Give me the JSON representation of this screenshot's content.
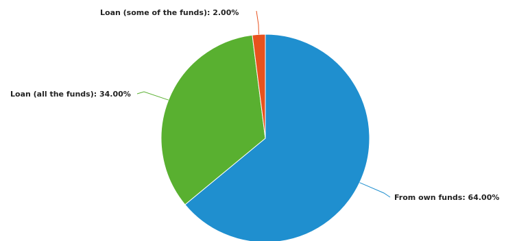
{
  "chart_data": {
    "type": "pie",
    "title": "",
    "series": [
      {
        "name": "",
        "slices": [
          {
            "label": "From own funds",
            "value": 64.0,
            "display": "From own funds: 64.00%",
            "color": "#1f8fcf"
          },
          {
            "label": "Loan (all the funds)",
            "value": 34.0,
            "display": "Loan (all the funds): 34.00%",
            "color": "#59b030"
          },
          {
            "label": "Loan (some of the funds)",
            "value": 2.0,
            "display": "Loan (some of the funds): 2.00%",
            "color": "#e8521e"
          }
        ]
      }
    ],
    "legend": "none",
    "data_labels": "outside-with-leader-lines"
  }
}
